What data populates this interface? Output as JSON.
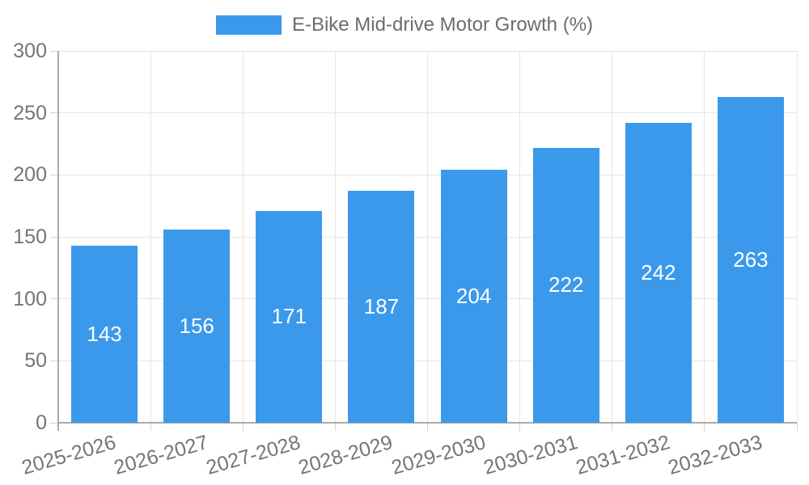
{
  "legend": {
    "label": "E-Bike Mid-drive Motor Growth (%)"
  },
  "chart_data": {
    "type": "bar",
    "title": "",
    "series_name": "E-Bike Mid-drive Motor Growth (%)",
    "categories": [
      "2025-2026",
      "2026-2027",
      "2027-2028",
      "2028-2029",
      "2029-2030",
      "2030-2031",
      "2031-2032",
      "2032-2033"
    ],
    "values": [
      143,
      156,
      171,
      187,
      204,
      222,
      242,
      263
    ],
    "xlabel": "",
    "ylabel": "",
    "ylim": [
      0,
      300
    ],
    "yticks": [
      0,
      50,
      100,
      150,
      200,
      250,
      300
    ],
    "grid": true,
    "legend_position": "top-center",
    "bar_color": "#3B99EC",
    "bar_label_color": "#FFFFFF",
    "axis_color": "#ABABAB",
    "grid_color": "#E6E6E6",
    "tick_label_color": "#757575"
  }
}
